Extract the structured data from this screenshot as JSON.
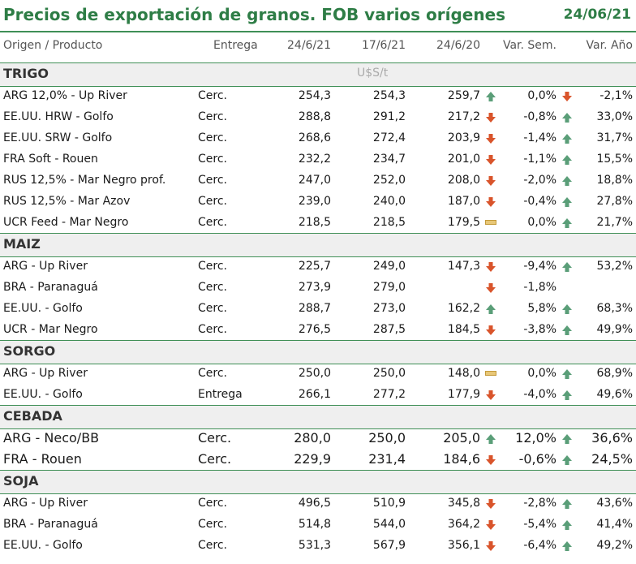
{
  "title": "Precios de exportación de granos. FOB varios orígenes",
  "date": "24/06/21",
  "headers": {
    "product": "Origen / Producto",
    "delivery": "Entrega",
    "c1": "24/6/21",
    "c2": "17/6/21",
    "c3": "24/6/20",
    "var_week": "Var. Sem.",
    "var_year": "Var. Año"
  },
  "units": "U$S/t",
  "sections": [
    {
      "name": "TRIGO",
      "rows": [
        {
          "product": "ARG 12,0% - Up River",
          "delivery": "Cerc.",
          "v1": "254,3",
          "v2": "254,3",
          "v3": "259,7",
          "i1": "up",
          "vs": "0,0%",
          "i2": "down",
          "va": "-2,1%"
        },
        {
          "product": "EE.UU. HRW - Golfo",
          "delivery": "Cerc.",
          "v1": "288,8",
          "v2": "291,2",
          "v3": "217,2",
          "i1": "down",
          "vs": "-0,8%",
          "i2": "up",
          "va": "33,0%"
        },
        {
          "product": "EE.UU. SRW - Golfo",
          "delivery": "Cerc.",
          "v1": "268,6",
          "v2": "272,4",
          "v3": "203,9",
          "i1": "down",
          "vs": "-1,4%",
          "i2": "up",
          "va": "31,7%"
        },
        {
          "product": "FRA Soft - Rouen",
          "delivery": "Cerc.",
          "v1": "232,2",
          "v2": "234,7",
          "v3": "201,0",
          "i1": "down",
          "vs": "-1,1%",
          "i2": "up",
          "va": "15,5%"
        },
        {
          "product": "RUS 12,5% - Mar Negro prof.",
          "delivery": "Cerc.",
          "v1": "247,0",
          "v2": "252,0",
          "v3": "208,0",
          "i1": "down",
          "vs": "-2,0%",
          "i2": "up",
          "va": "18,8%"
        },
        {
          "product": "RUS 12,5% - Mar Azov",
          "delivery": "Cerc.",
          "v1": "239,0",
          "v2": "240,0",
          "v3": "187,0",
          "i1": "down",
          "vs": "-0,4%",
          "i2": "up",
          "va": "27,8%"
        },
        {
          "product": "UCR Feed - Mar Negro",
          "delivery": "Cerc.",
          "v1": "218,5",
          "v2": "218,5",
          "v3": "179,5",
          "i1": "flat",
          "vs": "0,0%",
          "i2": "up",
          "va": "21,7%"
        }
      ]
    },
    {
      "name": "MAIZ",
      "rows": [
        {
          "product": "ARG - Up River",
          "delivery": "Cerc.",
          "v1": "225,7",
          "v2": "249,0",
          "v3": "147,3",
          "i1": "down",
          "vs": "-9,4%",
          "i2": "up",
          "va": "53,2%"
        },
        {
          "product": "BRA - Paranaguá",
          "delivery": "Cerc.",
          "v1": "273,9",
          "v2": "279,0",
          "v3": "",
          "i1": "down",
          "vs": "-1,8%",
          "i2": "",
          "va": ""
        },
        {
          "product": "EE.UU. - Golfo",
          "delivery": "Cerc.",
          "v1": "288,7",
          "v2": "273,0",
          "v3": "162,2",
          "i1": "up",
          "vs": "5,8%",
          "i2": "up",
          "va": "68,3%"
        },
        {
          "product": "UCR - Mar Negro",
          "delivery": "Cerc.",
          "v1": "276,5",
          "v2": "287,5",
          "v3": "184,5",
          "i1": "down",
          "vs": "-3,8%",
          "i2": "up",
          "va": "49,9%"
        }
      ]
    },
    {
      "name": "SORGO",
      "rows": [
        {
          "product": "ARG - Up River",
          "delivery": "Cerc.",
          "v1": "250,0",
          "v2": "250,0",
          "v3": "148,0",
          "i1": "flat",
          "vs": "0,0%",
          "i2": "up",
          "va": "68,9%"
        },
        {
          "product": "EE.UU. - Golfo",
          "delivery": "Entrega",
          "v1": "266,1",
          "v2": "277,2",
          "v3": "177,9",
          "i1": "down",
          "vs": "-4,0%",
          "i2": "up",
          "va": "49,6%"
        }
      ]
    },
    {
      "name": "CEBADA",
      "big": true,
      "rows": [
        {
          "product": "ARG - Neco/BB",
          "delivery": "Cerc.",
          "v1": "280,0",
          "v2": "250,0",
          "v3": "205,0",
          "i1": "up",
          "vs": "12,0%",
          "i2": "up",
          "va": "36,6%"
        },
        {
          "product": "FRA - Rouen",
          "delivery": "Cerc.",
          "v1": "229,9",
          "v2": "231,4",
          "v3": "184,6",
          "i1": "down",
          "vs": "-0,6%",
          "i2": "up",
          "va": "24,5%"
        }
      ]
    },
    {
      "name": "SOJA",
      "rows": [
        {
          "product": "ARG - Up River",
          "delivery": "Cerc.",
          "v1": "496,5",
          "v2": "510,9",
          "v3": "345,8",
          "i1": "down",
          "vs": "-2,8%",
          "i2": "up",
          "va": "43,6%"
        },
        {
          "product": "BRA - Paranaguá",
          "delivery": "Cerc.",
          "v1": "514,8",
          "v2": "544,0",
          "v3": "364,2",
          "i1": "down",
          "vs": "-5,4%",
          "i2": "up",
          "va": "41,4%"
        },
        {
          "product": "EE.UU. - Golfo",
          "delivery": "Cerc.",
          "v1": "531,3",
          "v2": "567,9",
          "v3": "356,1",
          "i1": "down",
          "vs": "-6,4%",
          "i2": "up",
          "va": "49,2%"
        }
      ]
    }
  ],
  "colors": {
    "up": "#5a9e78",
    "down": "#d9542b",
    "flat": "#e8c777",
    "accent": "#2e7d46"
  }
}
